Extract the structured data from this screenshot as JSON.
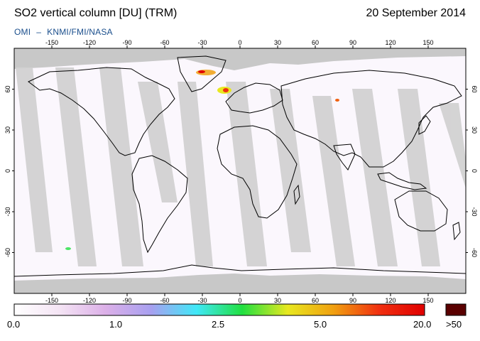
{
  "header": {
    "title": "SO2 vertical column [DU] (TRM)",
    "date": "20 September 2014",
    "credit_parts": [
      "OMI",
      "–",
      "KNMI/FMI/NASA"
    ]
  },
  "map": {
    "projection": "plate carree",
    "lon_ticks_top": [
      -150,
      -120,
      -90,
      -60,
      -30,
      0,
      30,
      60,
      90,
      120,
      150
    ],
    "lon_ticks_bottom": [
      -150,
      -120,
      -90,
      -60,
      -30,
      0,
      30,
      60,
      90,
      120,
      150
    ],
    "lat_ticks_left": [
      60,
      30,
      0,
      -30,
      -60
    ],
    "lat_ticks_right": [
      60,
      30,
      0,
      -30,
      -60
    ],
    "lat_tick_labels_left": [
      "60",
      "30",
      "0",
      "-30",
      "-60"
    ],
    "lat_tick_labels_right": [
      "60",
      "30",
      "0",
      "-30",
      "-60"
    ],
    "lon_tick_labels": [
      "-150",
      "-120",
      "-90",
      "-60",
      "-30",
      "0",
      "30",
      "60",
      "90",
      "120",
      "150"
    ],
    "colors": {
      "no_data": "#c8c8c8",
      "swath_shade": "#d0d0d0",
      "background": "#fbf7fd",
      "coast": "#000000"
    }
  },
  "colorbar": {
    "labels": [
      "0.0",
      "1.0",
      "2.5",
      "5.0",
      "20.0",
      ">50"
    ],
    "stops": [
      "#ffffff",
      "#f4e4f4",
      "#dcb0e8",
      "#a8a0f0",
      "#40e8f8",
      "#20e040",
      "#e8e820",
      "#f0a010",
      "#f03010",
      "#e00000"
    ],
    "overflow_color": "#5a0000"
  }
}
